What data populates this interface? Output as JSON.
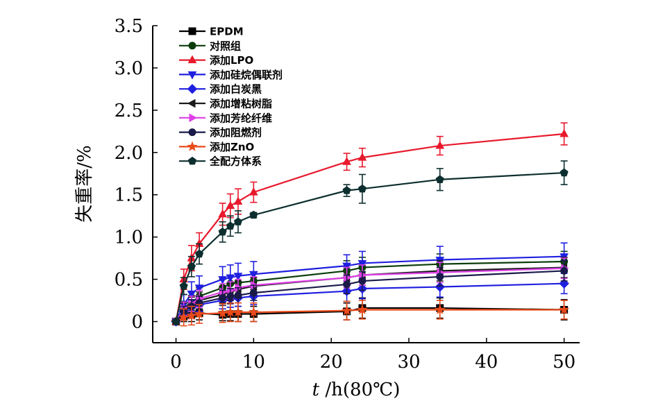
{
  "chart_data": {
    "type": "line",
    "title": "",
    "xlabel": "t /h(80℃)",
    "xlabel_italic_part": "t",
    "xlabel_rest": " /h(80℃)",
    "ylabel": "失重率/%",
    "xlim": [
      -3,
      52
    ],
    "ylim": [
      -0.25,
      3.5
    ],
    "xticks": [
      0,
      10,
      20,
      30,
      40,
      50
    ],
    "yticks": [
      0,
      0.5,
      1.0,
      1.5,
      2.0,
      2.5,
      3.0,
      3.5
    ],
    "ytick_labels": [
      "0",
      "0.5",
      "1.0",
      "1.5",
      "2.0",
      "2.5",
      "3.0",
      "3.5"
    ],
    "xtick_labels": [
      "0",
      "10",
      "20",
      "30",
      "40",
      "50"
    ],
    "grid": false,
    "legend_position": "top-left",
    "x": [
      0,
      1,
      2,
      3,
      6,
      7,
      8,
      10,
      22,
      24,
      34,
      50
    ],
    "series": [
      {
        "name": "EPDM",
        "marker": "square",
        "color": "#000000",
        "values": [
          0,
          0.06,
          0.08,
          0.1,
          0.08,
          0.09,
          0.09,
          0.09,
          0.12,
          0.16,
          0.16,
          0.14
        ],
        "errors": [
          0.02,
          0.06,
          0.08,
          0.08,
          0.07,
          0.08,
          0.09,
          0.09,
          0.1,
          0.12,
          0.12,
          0.12
        ]
      },
      {
        "name": "对照组",
        "marker": "circle",
        "color": "#0b3d0b",
        "values": [
          0,
          0.16,
          0.22,
          0.3,
          0.4,
          0.45,
          0.46,
          0.48,
          0.6,
          0.64,
          0.68,
          0.71
        ],
        "errors": [
          0.02,
          0.08,
          0.09,
          0.1,
          0.1,
          0.1,
          0.1,
          0.1,
          0.12,
          0.12,
          0.12,
          0.12
        ]
      },
      {
        "name": "添加LPO",
        "marker": "triangle-up",
        "color": "#e8192c",
        "values": [
          0,
          0.5,
          0.75,
          0.92,
          1.27,
          1.37,
          1.42,
          1.53,
          1.89,
          1.94,
          2.08,
          2.22
        ],
        "errors": [
          0.02,
          0.12,
          0.15,
          0.13,
          0.13,
          0.14,
          0.15,
          0.12,
          0.1,
          0.11,
          0.11,
          0.13
        ]
      },
      {
        "name": "添加硅烷偶联剂",
        "marker": "triangle-down",
        "color": "#1f1fe0",
        "values": [
          0,
          0.2,
          0.33,
          0.4,
          0.5,
          0.52,
          0.54,
          0.56,
          0.66,
          0.69,
          0.73,
          0.77
        ],
        "errors": [
          0.02,
          0.12,
          0.14,
          0.14,
          0.15,
          0.15,
          0.15,
          0.15,
          0.13,
          0.14,
          0.16,
          0.16
        ]
      },
      {
        "name": "添加白炭黑",
        "marker": "diamond",
        "color": "#1f1fe0",
        "values": [
          0,
          0.12,
          0.17,
          0.2,
          0.25,
          0.27,
          0.28,
          0.3,
          0.36,
          0.39,
          0.41,
          0.45
        ],
        "errors": [
          0.02,
          0.06,
          0.08,
          0.08,
          0.1,
          0.1,
          0.1,
          0.1,
          0.12,
          0.12,
          0.12,
          0.12
        ]
      },
      {
        "name": "添加增粘树脂",
        "marker": "triangle-left",
        "color": "#1a1a1a",
        "values": [
          0,
          0.14,
          0.2,
          0.25,
          0.32,
          0.35,
          0.38,
          0.42,
          0.52,
          0.55,
          0.6,
          0.64
        ],
        "errors": [
          0.02,
          0.08,
          0.09,
          0.1,
          0.1,
          0.1,
          0.1,
          0.1,
          0.12,
          0.12,
          0.12,
          0.12
        ]
      },
      {
        "name": "添加芳纶纤维",
        "marker": "triangle-right",
        "color": "#e040e8",
        "values": [
          0,
          0.15,
          0.21,
          0.27,
          0.35,
          0.37,
          0.4,
          0.43,
          0.52,
          0.55,
          0.58,
          0.63
        ],
        "errors": [
          0.02,
          0.08,
          0.09,
          0.1,
          0.1,
          0.1,
          0.1,
          0.1,
          0.12,
          0.12,
          0.12,
          0.12
        ]
      },
      {
        "name": "添加阻燃剂",
        "marker": "circle",
        "color": "#1a1a4a",
        "values": [
          0,
          0.12,
          0.18,
          0.22,
          0.28,
          0.3,
          0.31,
          0.34,
          0.44,
          0.48,
          0.53,
          0.6
        ],
        "errors": [
          0.02,
          0.06,
          0.08,
          0.08,
          0.09,
          0.09,
          0.09,
          0.09,
          0.11,
          0.11,
          0.11,
          0.12
        ]
      },
      {
        "name": "添加ZnO",
        "marker": "star",
        "color": "#e84a1a",
        "values": [
          0,
          0.05,
          0.07,
          0.09,
          0.1,
          0.11,
          0.11,
          0.11,
          0.13,
          0.14,
          0.14,
          0.14
        ],
        "errors": [
          0.02,
          0.1,
          0.11,
          0.11,
          0.11,
          0.11,
          0.11,
          0.11,
          0.11,
          0.11,
          0.11,
          0.11
        ]
      },
      {
        "name": "全配方体系",
        "marker": "pentagon",
        "color": "#0d2e2e",
        "values": [
          0,
          0.42,
          0.65,
          0.8,
          1.06,
          1.13,
          1.18,
          1.26,
          1.55,
          1.57,
          1.68,
          1.76
        ],
        "errors": [
          0.02,
          0.1,
          0.12,
          0.12,
          0.12,
          0.12,
          0.13,
          0.03,
          0.07,
          0.17,
          0.13,
          0.14
        ]
      }
    ]
  }
}
